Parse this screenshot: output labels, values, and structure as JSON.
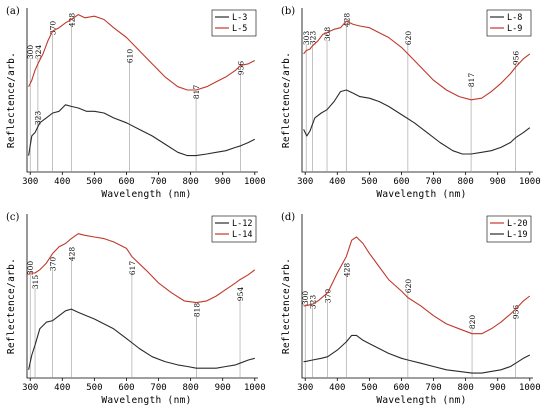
{
  "chart_data": [
    {
      "type": "line",
      "panel_label": "(a)",
      "xlabel": "Wavelength (nm)",
      "ylabel": "Reflectence/arb.",
      "xlim": [
        290,
        1010
      ],
      "ylim": [
        0,
        1
      ],
      "xticks": [
        "300",
        "400",
        "500",
        "600",
        "700",
        "800",
        "900",
        "1000"
      ],
      "legend_position": "top-right",
      "annotations": [
        "300",
        "324",
        "370",
        "428",
        "610",
        "817",
        "956",
        "323"
      ],
      "series": [
        {
          "name": "L-3",
          "color": "#2b2b2b",
          "x": [
            295,
            305,
            315,
            330,
            350,
            370,
            390,
            410,
            428,
            450,
            475,
            500,
            530,
            560,
            600,
            640,
            680,
            720,
            760,
            790,
            817,
            850,
            880,
            910,
            940,
            956,
            980,
            1000
          ],
          "y": [
            0.1,
            0.22,
            0.24,
            0.3,
            0.33,
            0.36,
            0.37,
            0.41,
            0.4,
            0.39,
            0.37,
            0.37,
            0.36,
            0.33,
            0.3,
            0.26,
            0.22,
            0.17,
            0.12,
            0.1,
            0.1,
            0.11,
            0.12,
            0.13,
            0.15,
            0.16,
            0.18,
            0.2
          ]
        },
        {
          "name": "L-5",
          "color": "#c0392b",
          "x": [
            295,
            305,
            315,
            324,
            340,
            355,
            370,
            390,
            410,
            428,
            450,
            470,
            500,
            530,
            560,
            600,
            640,
            680,
            720,
            760,
            790,
            817,
            850,
            880,
            910,
            940,
            956,
            980,
            1000
          ],
          "y": [
            0.52,
            0.56,
            0.62,
            0.66,
            0.72,
            0.8,
            0.86,
            0.88,
            0.91,
            0.93,
            0.96,
            0.94,
            0.95,
            0.93,
            0.88,
            0.82,
            0.74,
            0.66,
            0.58,
            0.52,
            0.5,
            0.5,
            0.52,
            0.55,
            0.58,
            0.62,
            0.65,
            0.66,
            0.68
          ]
        }
      ]
    },
    {
      "type": "line",
      "panel_label": "(b)",
      "xlabel": "Wavelength (nm)",
      "ylabel": "Reflectence/arb.",
      "xlim": [
        290,
        1010
      ],
      "ylim": [
        0,
        1
      ],
      "xticks": [
        "300",
        "400",
        "500",
        "600",
        "700",
        "800",
        "900",
        "1000"
      ],
      "legend_position": "top-right",
      "annotations": [
        "303",
        "323",
        "368",
        "428",
        "620",
        "817",
        "956"
      ],
      "series": [
        {
          "name": "L-8",
          "color": "#2b2b2b",
          "x": [
            295,
            305,
            315,
            330,
            350,
            368,
            390,
            410,
            428,
            450,
            470,
            500,
            530,
            560,
            600,
            640,
            680,
            720,
            760,
            790,
            817,
            850,
            880,
            910,
            940,
            956,
            980,
            1000
          ],
          "y": [
            0.26,
            0.22,
            0.25,
            0.33,
            0.36,
            0.38,
            0.43,
            0.49,
            0.5,
            0.48,
            0.46,
            0.45,
            0.43,
            0.4,
            0.35,
            0.3,
            0.24,
            0.18,
            0.13,
            0.11,
            0.11,
            0.12,
            0.13,
            0.15,
            0.18,
            0.21,
            0.24,
            0.27
          ]
        },
        {
          "name": "L-9",
          "color": "#c0392b",
          "x": [
            295,
            303,
            315,
            323,
            340,
            355,
            368,
            390,
            410,
            428,
            450,
            470,
            500,
            530,
            560,
            600,
            620,
            660,
            700,
            740,
            780,
            817,
            850,
            880,
            910,
            940,
            956,
            980,
            1000
          ],
          "y": [
            0.72,
            0.74,
            0.75,
            0.77,
            0.8,
            0.84,
            0.85,
            0.87,
            0.88,
            0.92,
            0.9,
            0.89,
            0.88,
            0.85,
            0.82,
            0.76,
            0.72,
            0.64,
            0.56,
            0.5,
            0.46,
            0.44,
            0.45,
            0.49,
            0.54,
            0.6,
            0.64,
            0.69,
            0.72
          ]
        }
      ]
    },
    {
      "type": "line",
      "panel_label": "(c)",
      "xlabel": "Wavelength (nm)",
      "ylabel": "Reflectence/arb.",
      "xlim": [
        290,
        1010
      ],
      "ylim": [
        0,
        1
      ],
      "xticks": [
        "300",
        "400",
        "500",
        "600",
        "700",
        "800",
        "900",
        "1000"
      ],
      "legend_position": "top-right",
      "annotations": [
        "315",
        "300",
        "370",
        "428",
        "617",
        "818",
        "954"
      ],
      "series": [
        {
          "name": "L-12",
          "color": "#2b2b2b",
          "x": [
            295,
            305,
            315,
            330,
            350,
            370,
            390,
            410,
            428,
            450,
            475,
            500,
            530,
            560,
            600,
            640,
            680,
            720,
            760,
            790,
            818,
            850,
            880,
            910,
            940,
            954,
            980,
            1000
          ],
          "y": [
            0.05,
            0.14,
            0.2,
            0.3,
            0.34,
            0.35,
            0.38,
            0.41,
            0.42,
            0.4,
            0.38,
            0.36,
            0.33,
            0.3,
            0.24,
            0.18,
            0.13,
            0.1,
            0.08,
            0.07,
            0.06,
            0.06,
            0.06,
            0.07,
            0.08,
            0.09,
            0.11,
            0.12
          ]
        },
        {
          "name": "L-14",
          "color": "#c0392b",
          "x": [
            295,
            300,
            315,
            330,
            350,
            370,
            390,
            410,
            428,
            450,
            470,
            500,
            530,
            560,
            600,
            617,
            660,
            700,
            740,
            780,
            818,
            850,
            880,
            910,
            940,
            954,
            980,
            1000
          ],
          "y": [
            0.63,
            0.64,
            0.64,
            0.66,
            0.7,
            0.76,
            0.8,
            0.82,
            0.85,
            0.88,
            0.87,
            0.86,
            0.85,
            0.83,
            0.79,
            0.74,
            0.66,
            0.58,
            0.52,
            0.47,
            0.46,
            0.47,
            0.5,
            0.54,
            0.58,
            0.6,
            0.63,
            0.66
          ]
        }
      ]
    },
    {
      "type": "line",
      "panel_label": "(d)",
      "xlabel": "Wavelength (nm)",
      "ylabel": "Reflectence/arb.",
      "xlim": [
        290,
        1010
      ],
      "ylim": [
        0,
        1
      ],
      "xticks": [
        "300",
        "400",
        "500",
        "600",
        "700",
        "800",
        "900",
        "1000"
      ],
      "legend_position": "top-right",
      "annotations": [
        "300",
        "323",
        "370",
        "428",
        "620",
        "820",
        "956"
      ],
      "series": [
        {
          "name": "L-20",
          "color": "#c0392b",
          "x": [
            295,
            300,
            323,
            340,
            370,
            400,
            428,
            445,
            460,
            480,
            500,
            530,
            560,
            600,
            620,
            660,
            700,
            740,
            780,
            820,
            850,
            880,
            910,
            940,
            956,
            980,
            1000
          ],
          "y": [
            0.44,
            0.44,
            0.45,
            0.47,
            0.52,
            0.64,
            0.74,
            0.84,
            0.86,
            0.82,
            0.76,
            0.68,
            0.6,
            0.53,
            0.49,
            0.44,
            0.38,
            0.33,
            0.3,
            0.27,
            0.27,
            0.3,
            0.34,
            0.39,
            0.42,
            0.47,
            0.5
          ]
        },
        {
          "name": "L-19",
          "color": "#2b2b2b",
          "x": [
            295,
            300,
            323,
            350,
            370,
            400,
            428,
            445,
            460,
            480,
            500,
            530,
            560,
            600,
            620,
            660,
            700,
            740,
            780,
            820,
            850,
            880,
            910,
            940,
            956,
            980,
            1000
          ],
          "y": [
            0.1,
            0.1,
            0.11,
            0.12,
            0.13,
            0.17,
            0.22,
            0.26,
            0.26,
            0.23,
            0.21,
            0.18,
            0.15,
            0.12,
            0.11,
            0.09,
            0.07,
            0.05,
            0.04,
            0.03,
            0.03,
            0.04,
            0.05,
            0.07,
            0.09,
            0.12,
            0.14
          ]
        }
      ]
    }
  ]
}
